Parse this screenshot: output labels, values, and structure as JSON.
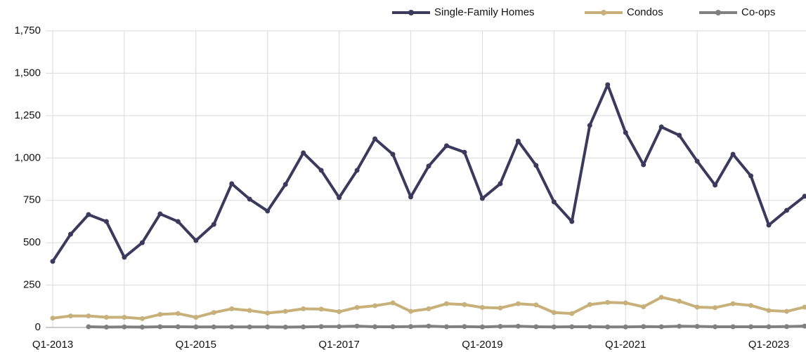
{
  "chart_data": {
    "type": "line",
    "categories": [
      "Q1-2013",
      null,
      null,
      null,
      null,
      null,
      null,
      null,
      "Q1-2015",
      null,
      null,
      null,
      null,
      null,
      null,
      null,
      "Q1-2017",
      null,
      null,
      null,
      null,
      null,
      null,
      null,
      "Q1-2019",
      null,
      null,
      null,
      null,
      null,
      null,
      null,
      "Q1-2021",
      null,
      null,
      null,
      null,
      null,
      null,
      null,
      "Q1-2023",
      null,
      null
    ],
    "series": [
      {
        "name": "Single-Family Homes",
        "color": "#3b3a5c",
        "values": [
          390,
          550,
          666,
          625,
          414,
          500,
          670,
          625,
          513,
          608,
          848,
          757,
          687,
          844,
          1030,
          927,
          766,
          927,
          1113,
          1022,
          770,
          952,
          1072,
          1034,
          761,
          848,
          1100,
          956,
          741,
          625,
          1192,
          1432,
          1150,
          960,
          1183,
          1134,
          981,
          840,
          1022,
          894,
          604,
          691,
          774
        ]
      },
      {
        "name": "Condos",
        "color": "#c8b07a",
        "values": [
          55,
          68,
          68,
          60,
          60,
          52,
          77,
          82,
          60,
          88,
          110,
          100,
          85,
          95,
          110,
          108,
          93,
          118,
          128,
          145,
          95,
          110,
          140,
          135,
          118,
          115,
          140,
          133,
          88,
          82,
          135,
          148,
          145,
          122,
          178,
          155,
          120,
          117,
          140,
          130,
          100,
          95,
          120
        ]
      },
      {
        "name": "Co-ops",
        "color": "#808080",
        "values": [
          null,
          null,
          4,
          2,
          3,
          2,
          4,
          4,
          3,
          3,
          3,
          3,
          3,
          2,
          3,
          5,
          5,
          8,
          4,
          4,
          5,
          8,
          4,
          5,
          3,
          6,
          7,
          4,
          3,
          4,
          4,
          3,
          3,
          5,
          4,
          7,
          6,
          4,
          4,
          4,
          4,
          5,
          8
        ]
      }
    ],
    "ylim": [
      0,
      1750
    ],
    "yticks": [
      0,
      250,
      500,
      750,
      {
        "value": 1000,
        "label": "1,000"
      },
      {
        "value": 1250,
        "label": "1,250"
      },
      {
        "value": 1500,
        "label": "1,500"
      },
      {
        "value": 1750,
        "label": "1,750"
      }
    ],
    "grid": true,
    "legend": "top-right"
  }
}
